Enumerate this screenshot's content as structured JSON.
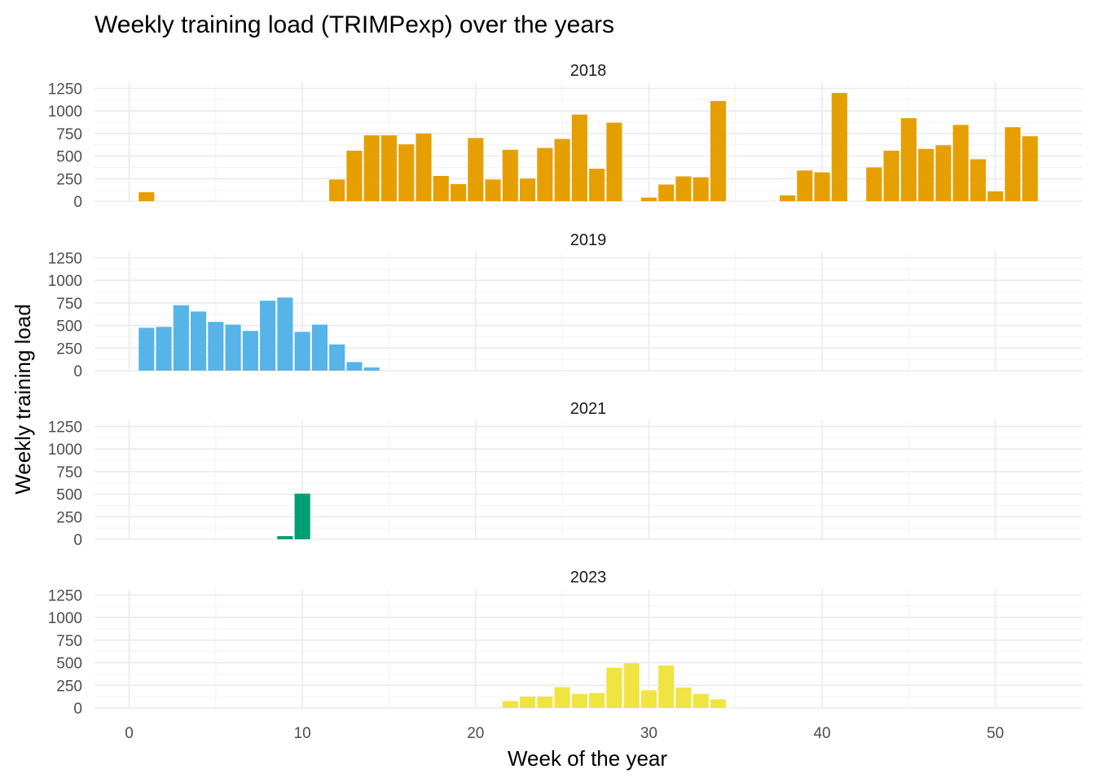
{
  "chart_data": {
    "type": "bar",
    "title": "Weekly training load (TRIMPexp) over the years",
    "xlabel": "Week of the year",
    "ylabel": "Weekly training load",
    "xlim": [
      -2,
      55
    ],
    "ylim": [
      0,
      1250
    ],
    "x_ticks": [
      0,
      10,
      20,
      30,
      40,
      50
    ],
    "y_ticks": [
      0,
      250,
      500,
      750,
      1000,
      1250
    ],
    "grid": true,
    "legend": "none",
    "panels": [
      {
        "name": "2018",
        "color": "#E69F00",
        "x": [
          1,
          12,
          13,
          14,
          15,
          16,
          17,
          18,
          19,
          20,
          21,
          22,
          23,
          24,
          25,
          26,
          27,
          28,
          30,
          31,
          32,
          33,
          34,
          38,
          39,
          40,
          41,
          43,
          44,
          45,
          46,
          47,
          48,
          49,
          50,
          51,
          52
        ],
        "values": [
          100,
          240,
          560,
          730,
          730,
          630,
          750,
          280,
          190,
          700,
          240,
          570,
          250,
          590,
          690,
          960,
          360,
          870,
          40,
          185,
          275,
          265,
          1110,
          65,
          340,
          320,
          1200,
          375,
          560,
          920,
          580,
          620,
          845,
          465,
          110,
          820,
          720
        ]
      },
      {
        "name": "2019",
        "color": "#56B4E9",
        "x": [
          1,
          2,
          3,
          4,
          5,
          6,
          7,
          8,
          9,
          10,
          11,
          12,
          13,
          14
        ],
        "values": [
          475,
          485,
          725,
          655,
          540,
          510,
          440,
          775,
          810,
          430,
          510,
          290,
          95,
          35
        ]
      },
      {
        "name": "2021",
        "color": "#009E73",
        "x": [
          9,
          10
        ],
        "values": [
          35,
          505
        ]
      },
      {
        "name": "2023",
        "color": "#F0E442",
        "x": [
          22,
          23,
          24,
          25,
          26,
          27,
          28,
          29,
          30,
          31,
          32,
          33,
          34
        ],
        "values": [
          75,
          125,
          125,
          230,
          155,
          165,
          445,
          495,
          195,
          470,
          225,
          155,
          95
        ]
      }
    ]
  }
}
